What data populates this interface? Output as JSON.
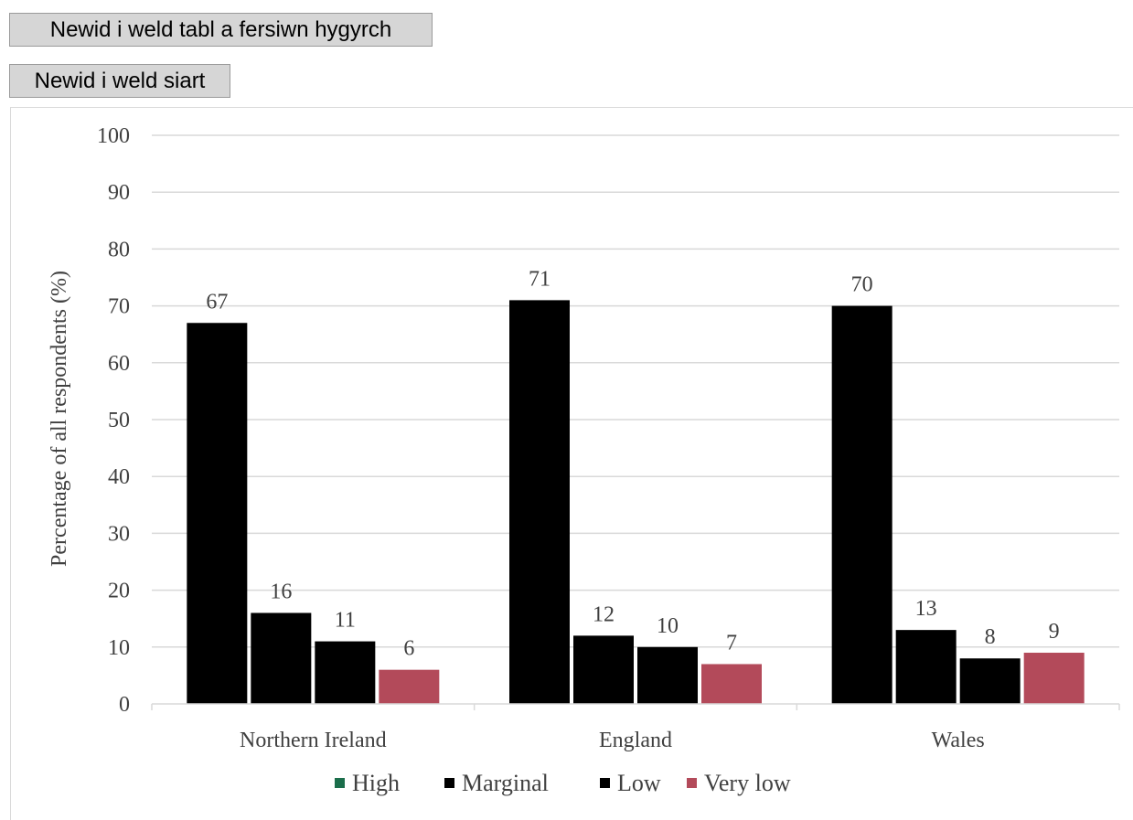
{
  "controls": {
    "table_toggle_label": "Newid i weld tabl a fersiwn hygyrch",
    "chart_toggle_label": "Newid i weld siart"
  },
  "chart_data": {
    "type": "bar",
    "categories": [
      "Northern Ireland",
      "England",
      "Wales"
    ],
    "series": [
      {
        "name": "High",
        "values": [
          67,
          71,
          70
        ],
        "color": "#000000",
        "legend_color": "#1b6e4b"
      },
      {
        "name": "Marginal",
        "values": [
          16,
          12,
          13
        ],
        "color": "#000000",
        "legend_color": "#000000"
      },
      {
        "name": "Low",
        "values": [
          11,
          10,
          8
        ],
        "color": "#000000",
        "legend_color": "#000000"
      },
      {
        "name": "Very low",
        "values": [
          6,
          7,
          9
        ],
        "color": "#b34a5a",
        "legend_color": "#b34a5a"
      }
    ],
    "ylabel": "Percentage of all respondents (%)",
    "xlabel": "",
    "ylim": [
      0,
      100
    ],
    "yticks": [
      0,
      10,
      20,
      30,
      40,
      50,
      60,
      70,
      80,
      90,
      100
    ],
    "grid": true,
    "legend_position": "bottom"
  }
}
